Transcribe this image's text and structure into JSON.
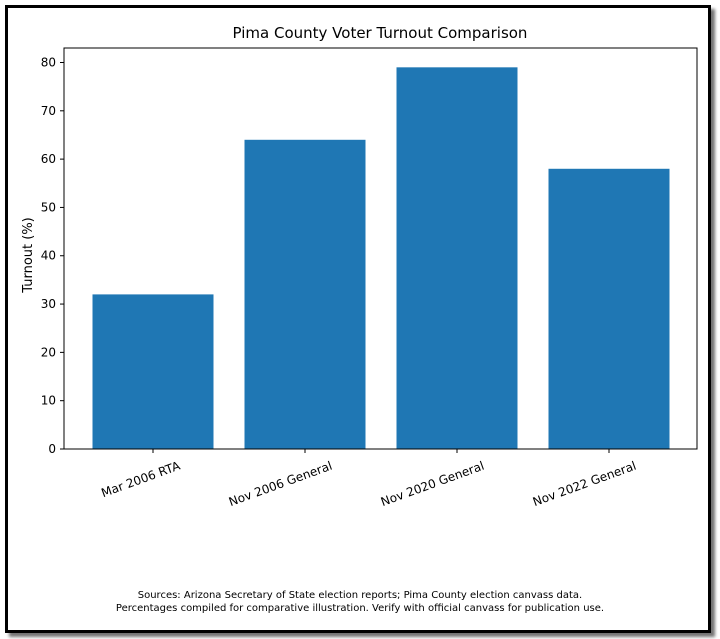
{
  "chart_data": {
    "type": "bar",
    "title": "Pima County Voter Turnout Comparison",
    "xlabel": "",
    "ylabel": "Turnout (%)",
    "categories": [
      "Mar 2006 RTA",
      "Nov 2006 General",
      "Nov 2020 General",
      "Nov 2022 General"
    ],
    "values": [
      32,
      64,
      79,
      58
    ],
    "ylim": [
      0,
      83
    ],
    "yticks": [
      0,
      10,
      20,
      30,
      40,
      50,
      60,
      70,
      80
    ],
    "bar_color": "#1f77b4",
    "grid": false
  },
  "footnote": {
    "line1": "Sources: Arizona Secretary of State election reports; Pima County election canvass data.",
    "line2": "Percentages compiled for comparative illustration. Verify with official canvass for publication use."
  }
}
